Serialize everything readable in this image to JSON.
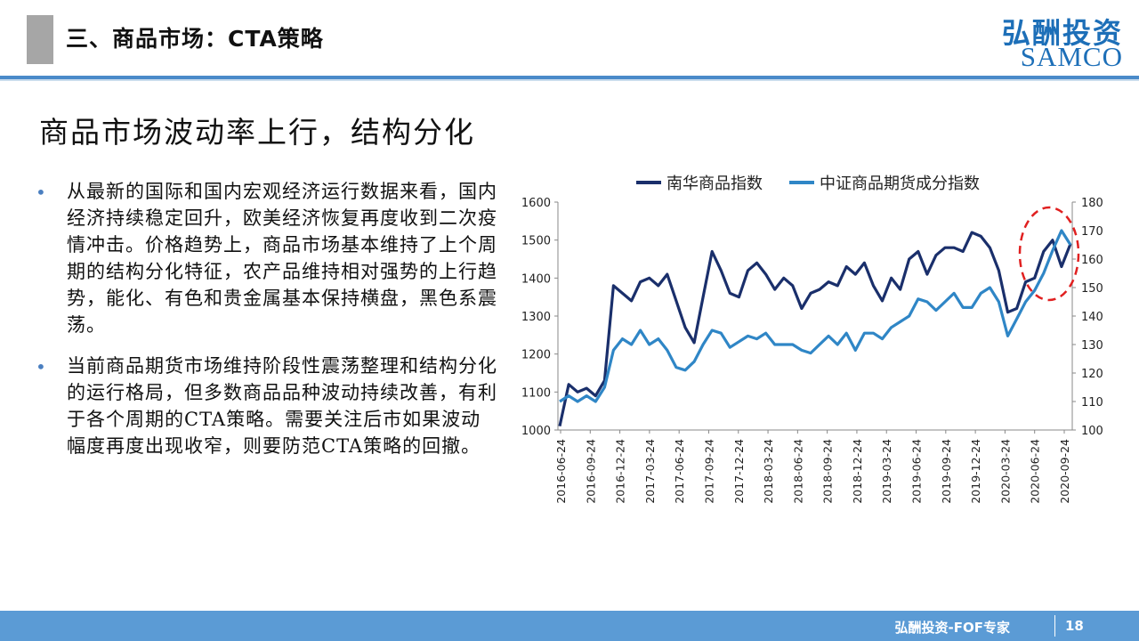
{
  "header": {
    "title": "三、商品市场：CTA策略",
    "brand_cn": "弘酬投资",
    "brand_en": "SAMCO"
  },
  "subtitle": "商品市场波动率上行，结构分化",
  "bullets": [
    "从最新的国际和国内宏观经济运行数据来看，国内经济持续稳定回升，欧美经济恢复再度收到二次疫情冲击。价格趋势上，商品市场基本维持了上个周期的结构分化特征，农产品维持相对强势的上行趋势，能化、有色和贵金属基本保持横盘，黑色系震荡。",
    "当前商品期货市场维持阶段性震荡整理和结构分化的运行格局，但多数商品品种波动持续改善，有利于各个周期的CTA策略。需要关注后市如果波动幅度再度出现收窄，则要防范CTA策略的回撤。"
  ],
  "footer": {
    "text": "弘酬投资-FOF专家",
    "page": "18"
  },
  "chart_data": {
    "type": "line",
    "legend_position": "top",
    "grid": false,
    "x_ticks": [
      "2016-06-24",
      "2016-09-24",
      "2016-12-24",
      "2017-03-24",
      "2017-06-24",
      "2017-09-24",
      "2017-12-24",
      "2018-03-24",
      "2018-06-24",
      "2018-09-24",
      "2018-12-24",
      "2019-03-24",
      "2019-06-24",
      "2019-09-24",
      "2019-12-24",
      "2020-03-24",
      "2020-06-24",
      "2020-09-24"
    ],
    "y_left": {
      "min": 1000,
      "max": 1600,
      "ticks": [
        1000,
        1100,
        1200,
        1300,
        1400,
        1500,
        1600
      ]
    },
    "y_right": {
      "min": 100,
      "max": 180,
      "ticks": [
        100,
        110,
        120,
        130,
        140,
        150,
        160,
        170,
        180
      ]
    },
    "series": [
      {
        "name": "南华商品指数",
        "axis": "left",
        "color": "#1a2f6b",
        "values": [
          1010,
          1120,
          1100,
          1110,
          1090,
          1130,
          1380,
          1360,
          1340,
          1390,
          1400,
          1380,
          1410,
          1340,
          1270,
          1230,
          1350,
          1470,
          1420,
          1360,
          1350,
          1420,
          1440,
          1410,
          1370,
          1400,
          1380,
          1320,
          1360,
          1370,
          1390,
          1380,
          1430,
          1410,
          1440,
          1380,
          1340,
          1400,
          1370,
          1450,
          1470,
          1410,
          1460,
          1480,
          1480,
          1470,
          1520,
          1510,
          1480,
          1420,
          1310,
          1320,
          1390,
          1400,
          1470,
          1500,
          1430,
          1490
        ]
      },
      {
        "name": "中证商品期货成分指数",
        "axis": "right",
        "color": "#2f86c6",
        "values": [
          110,
          112,
          110,
          112,
          110,
          115,
          128,
          132,
          130,
          135,
          130,
          132,
          128,
          122,
          121,
          124,
          130,
          135,
          134,
          129,
          131,
          133,
          132,
          134,
          130,
          130,
          130,
          128,
          127,
          130,
          133,
          130,
          134,
          128,
          134,
          134,
          132,
          136,
          138,
          140,
          146,
          145,
          142,
          145,
          148,
          143,
          143,
          148,
          150,
          145,
          133,
          139,
          145,
          149,
          155,
          163,
          170,
          165
        ]
      }
    ],
    "annotation": {
      "shape": "dashed-ellipse",
      "color": "#e02020",
      "range": [
        "2020-06-24",
        "2020-09-24"
      ]
    }
  }
}
